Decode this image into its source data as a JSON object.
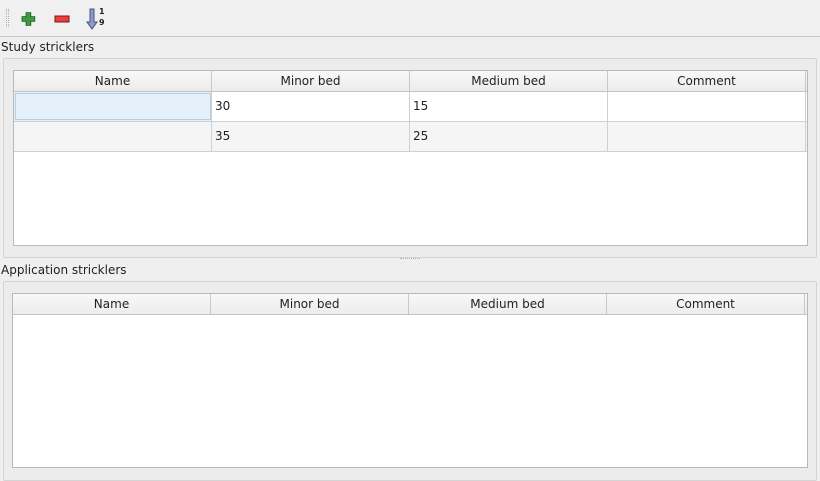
{
  "toolbar": {
    "add": "plus-icon",
    "remove": "minus-icon",
    "sort": "sort-ascending-icon",
    "sort_top": "1",
    "sort_bottom": "9"
  },
  "study": {
    "title": "Study stricklers",
    "columns": [
      "Name",
      "Minor bed",
      "Medium bed",
      "Comment"
    ],
    "rows": [
      [
        "",
        "30",
        "15",
        ""
      ],
      [
        "",
        "35",
        "25",
        ""
      ]
    ]
  },
  "application": {
    "title": "Application stricklers",
    "columns": [
      "Name",
      "Minor bed",
      "Medium bed",
      "Comment"
    ],
    "rows": []
  }
}
